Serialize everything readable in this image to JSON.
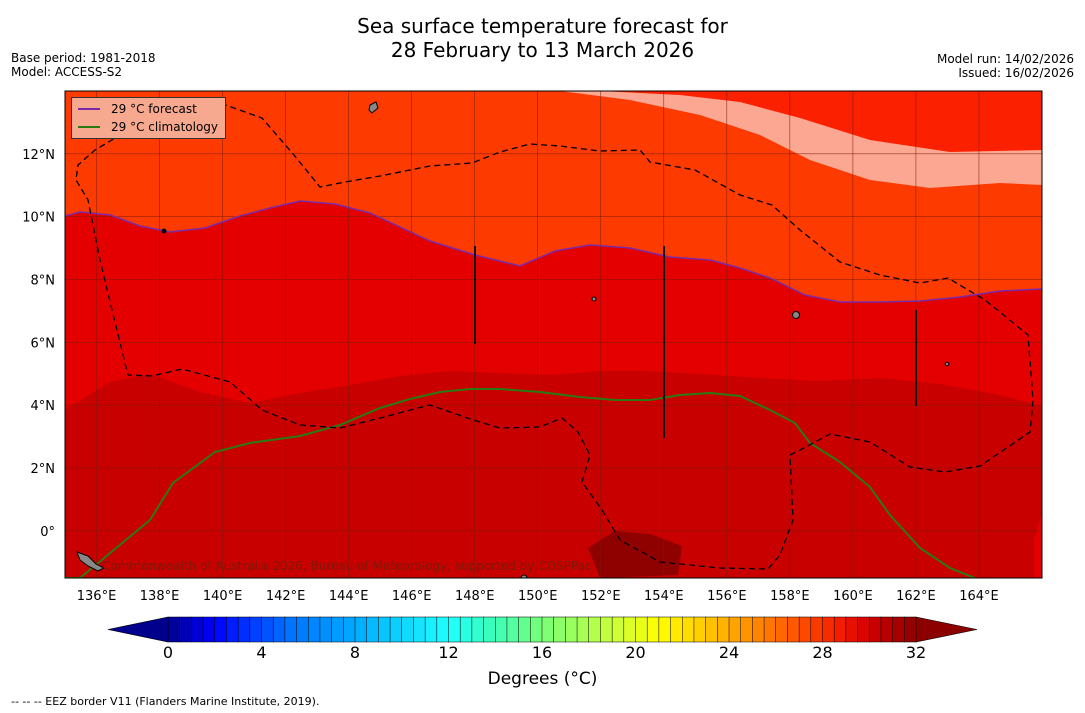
{
  "title": {
    "line1": "Sea surface temperature forecast for",
    "line2": "28 February to 13 March 2026"
  },
  "meta": {
    "base_period": "Base period: 1981-2018",
    "model": "Model: ACCESS-S2",
    "model_run": "Model run: 14/02/2026",
    "issued": "Issued: 16/02/2026"
  },
  "legend": {
    "forecast_label": "29 °C  forecast",
    "forecast_color": "#7a2aa8",
    "climatology_label": "29 °C  climatology",
    "climatology_color": "#2a7a12"
  },
  "axes": {
    "lat_labels": [
      "12°N",
      "10°N",
      "8°N",
      "6°N",
      "4°N",
      "2°N",
      "0°"
    ],
    "lon_labels": [
      "136°E",
      "138°E",
      "140°E",
      "142°E",
      "144°E",
      "146°E",
      "148°E",
      "150°E",
      "152°E",
      "154°E",
      "156°E",
      "158°E",
      "160°E",
      "162°E",
      "164°E"
    ]
  },
  "copyright": "Commonwealth of Australia 2026, Bureau of Meteorology, supported by COSPPac",
  "colorbar": {
    "ticks": [
      "0",
      "4",
      "8",
      "12",
      "16",
      "20",
      "24",
      "28",
      "32"
    ],
    "title": "Degrees (°C)"
  },
  "footnote": "--  --  -- EEZ border V11 (Flanders Marine Institute, 2019).",
  "colors": {
    "sst_27": "#fd3a00",
    "sst_27_5": "#fb2000",
    "sst_28_light": "#fca792",
    "sst_29": "#e50000",
    "sst_30": "#c80000",
    "sst_31": "#8f0000"
  }
}
